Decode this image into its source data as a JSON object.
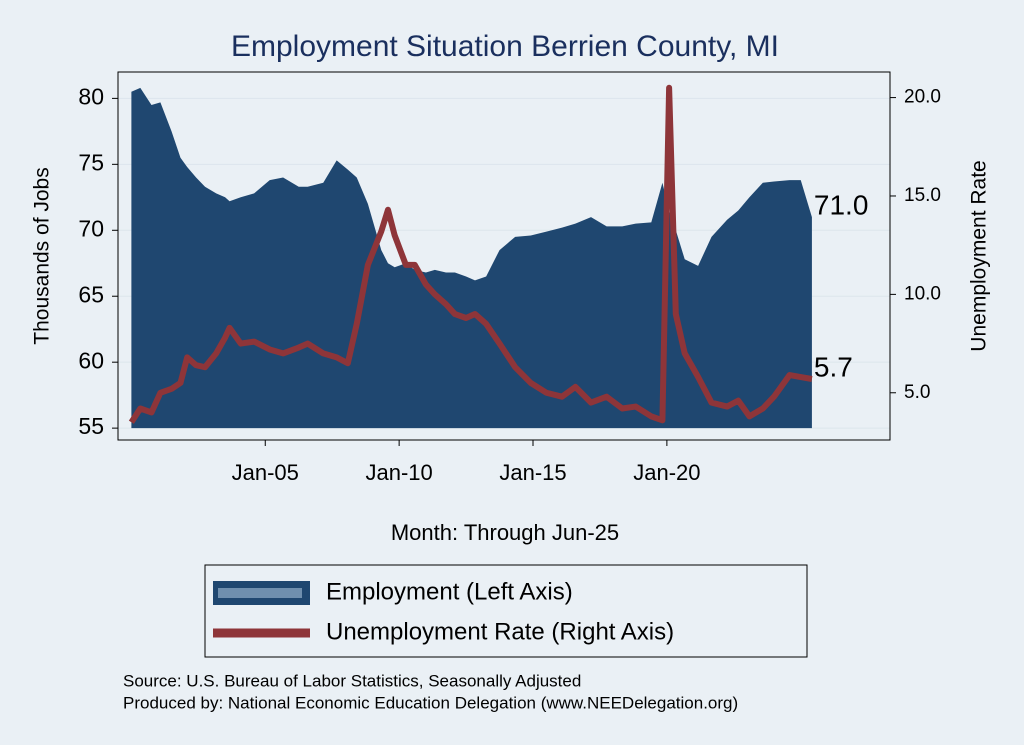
{
  "chart_data": {
    "type": "area-line-dual",
    "title": "Employment Situation Berrien  County, MI",
    "xlabel": "Month: Through Jun-25",
    "ylabel": "Thousands of Jobs",
    "y2label": "Unemployment Rate",
    "x": [
      "2000-01",
      "2000-05",
      "2000-10",
      "2001-02",
      "2001-07",
      "2001-11",
      "2002-02",
      "2002-06",
      "2002-10",
      "2003-03",
      "2003-07",
      "2003-09",
      "2004-02",
      "2004-08",
      "2005-03",
      "2005-09",
      "2006-04",
      "2006-08",
      "2007-03",
      "2007-09",
      "2008-02",
      "2008-06",
      "2008-11",
      "2009-05",
      "2009-08",
      "2009-11",
      "2010-04",
      "2010-08",
      "2011-01",
      "2011-05",
      "2011-10",
      "2012-02",
      "2012-07",
      "2012-11",
      "2013-04",
      "2013-10",
      "2014-05",
      "2014-12",
      "2015-07",
      "2016-02",
      "2016-08",
      "2017-03",
      "2017-10",
      "2018-05",
      "2018-11",
      "2019-06",
      "2019-11",
      "2020-02",
      "2020-05",
      "2020-09",
      "2021-03",
      "2021-09",
      "2022-04",
      "2022-09",
      "2023-02",
      "2023-08",
      "2024-01",
      "2024-08",
      "2025-01",
      "2025-06"
    ],
    "series": [
      {
        "name": "Employment (Left Axis)",
        "color": "#1f4770",
        "axis": "y",
        "last_label": "71.0",
        "values": [
          80.5,
          80.8,
          79.5,
          79.7,
          77.5,
          75.5,
          74.8,
          74,
          73.3,
          72.8,
          72.5,
          72.2,
          72.5,
          72.8,
          73.8,
          74,
          73.3,
          73.3,
          73.6,
          75.3,
          74.6,
          74,
          72,
          68.5,
          67.5,
          67.2,
          67.5,
          67,
          66.8,
          67,
          66.8,
          66.8,
          66.5,
          66.2,
          66.5,
          68.5,
          69.5,
          69.6,
          69.9,
          70.2,
          70.5,
          71,
          70.3,
          70.3,
          70.5,
          70.6,
          73.6,
          71.5,
          70,
          67.8,
          67.3,
          69.5,
          70.8,
          71.5,
          72.5,
          73.6,
          73.7,
          73.8,
          73.8,
          71.0
        ]
      },
      {
        "name": "Unemployment Rate (Right Axis)",
        "color": "#8e3539",
        "axis": "y2",
        "last_label": "5.7",
        "values": [
          3.5,
          4.2,
          4.0,
          5.0,
          5.2,
          5.5,
          6.8,
          6.4,
          6.3,
          7.0,
          7.8,
          8.3,
          7.5,
          7.6,
          7.2,
          7.0,
          7.3,
          7.5,
          7.0,
          6.8,
          6.5,
          8.5,
          11.5,
          13.2,
          14.3,
          13.0,
          11.5,
          11.5,
          10.5,
          10.0,
          9.5,
          9.0,
          8.8,
          9.0,
          8.5,
          7.5,
          6.3,
          5.5,
          5.0,
          4.8,
          5.3,
          4.5,
          4.8,
          4.2,
          4.3,
          3.8,
          3.6,
          20.5,
          9.0,
          7.0,
          5.8,
          4.5,
          4.3,
          4.6,
          3.8,
          4.2,
          4.8,
          5.9,
          5.8,
          5.7
        ]
      }
    ],
    "xlim": [
      "1999-07",
      "2028-05"
    ],
    "xticks": [
      {
        "value": "2005-01",
        "label": "Jan-05"
      },
      {
        "value": "2010-01",
        "label": "Jan-10"
      },
      {
        "value": "2015-01",
        "label": "Jan-15"
      },
      {
        "value": "2020-01",
        "label": "Jan-20"
      }
    ],
    "ylim": [
      54.1,
      82
    ],
    "yticks": [
      55,
      60,
      65,
      70,
      75,
      80
    ],
    "y2lim": [
      2.6,
      21.3
    ],
    "y2ticks": [
      {
        "value": 5,
        "label": "5.0"
      },
      {
        "value": 10,
        "label": "10.0"
      },
      {
        "value": 15,
        "label": "15.0"
      },
      {
        "value": 20,
        "label": "20.0"
      }
    ],
    "grid": true,
    "notes": [
      "Source: U.S. Bureau of Labor Statistics, Seasonally Adjusted",
      "Produced by: National Economic Education Delegation (www.NEEDelegation.org)"
    ]
  }
}
